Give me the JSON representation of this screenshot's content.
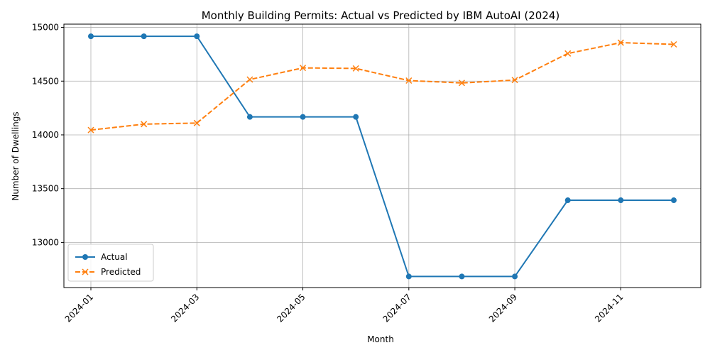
{
  "chart_data": {
    "type": "line",
    "title": "Monthly Building Permits: Actual vs Predicted by IBM AutoAI (2024)",
    "xlabel": "Month",
    "ylabel": "Number of Dwellings",
    "x": [
      "2024-01",
      "2024-02",
      "2024-03",
      "2024-04",
      "2024-05",
      "2024-06",
      "2024-07",
      "2024-08",
      "2024-09",
      "2024-10",
      "2024-11",
      "2024-12"
    ],
    "x_tick_labels": [
      "2024-01",
      "2024-03",
      "2024-05",
      "2024-07",
      "2024-09",
      "2024-11"
    ],
    "y_ticks": [
      13000,
      13500,
      14000,
      14500,
      15000
    ],
    "ylim": [
      12580,
      15030
    ],
    "grid": true,
    "legend_position": "lower-left",
    "series": [
      {
        "name": "Actual",
        "values": [
          14917,
          14917,
          14917,
          14167,
          14167,
          14167,
          12683,
          12683,
          12683,
          13392,
          13392,
          13392
        ],
        "color": "#1f77b4",
        "marker": "circle",
        "linestyle": "solid"
      },
      {
        "name": "Predicted",
        "values": [
          14045,
          14100,
          14110,
          14515,
          14623,
          14618,
          14505,
          14483,
          14510,
          14757,
          14858,
          14842
        ],
        "color": "#ff7f0e",
        "marker": "x",
        "linestyle": "dashed"
      }
    ]
  }
}
